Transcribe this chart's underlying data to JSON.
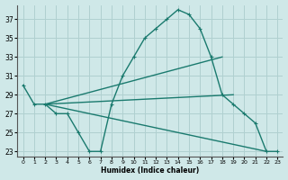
{
  "xlabel": "Humidex (Indice chaleur)",
  "background_color": "#cfe8e8",
  "grid_color": "#b0d0d0",
  "line_color": "#1a7a6e",
  "xlim": [
    -0.5,
    23.5
  ],
  "ylim": [
    22.5,
    38.5
  ],
  "xticks": [
    0,
    1,
    2,
    3,
    4,
    5,
    6,
    7,
    8,
    9,
    10,
    11,
    12,
    13,
    14,
    15,
    16,
    17,
    18,
    19,
    20,
    21,
    22,
    23
  ],
  "yticks": [
    23,
    25,
    27,
    29,
    31,
    33,
    35,
    37
  ],
  "curve_x": [
    0,
    1,
    2,
    3,
    4,
    5,
    6,
    7,
    8,
    9,
    10,
    11,
    12,
    13,
    14,
    15,
    16,
    17,
    18,
    19,
    20,
    21,
    22,
    23
  ],
  "curve_y": [
    30,
    28,
    28,
    27,
    27,
    25,
    23,
    23,
    28,
    31,
    33,
    35,
    36,
    37,
    38,
    37.5,
    36,
    33,
    29,
    28,
    27,
    26,
    23,
    23
  ],
  "fan_origin_x": 2,
  "fan_origin_y": 28,
  "fan_lines": [
    {
      "x2": 18,
      "y2": 33
    },
    {
      "x2": 19,
      "y2": 29
    },
    {
      "x2": 22,
      "y2": 23
    }
  ]
}
